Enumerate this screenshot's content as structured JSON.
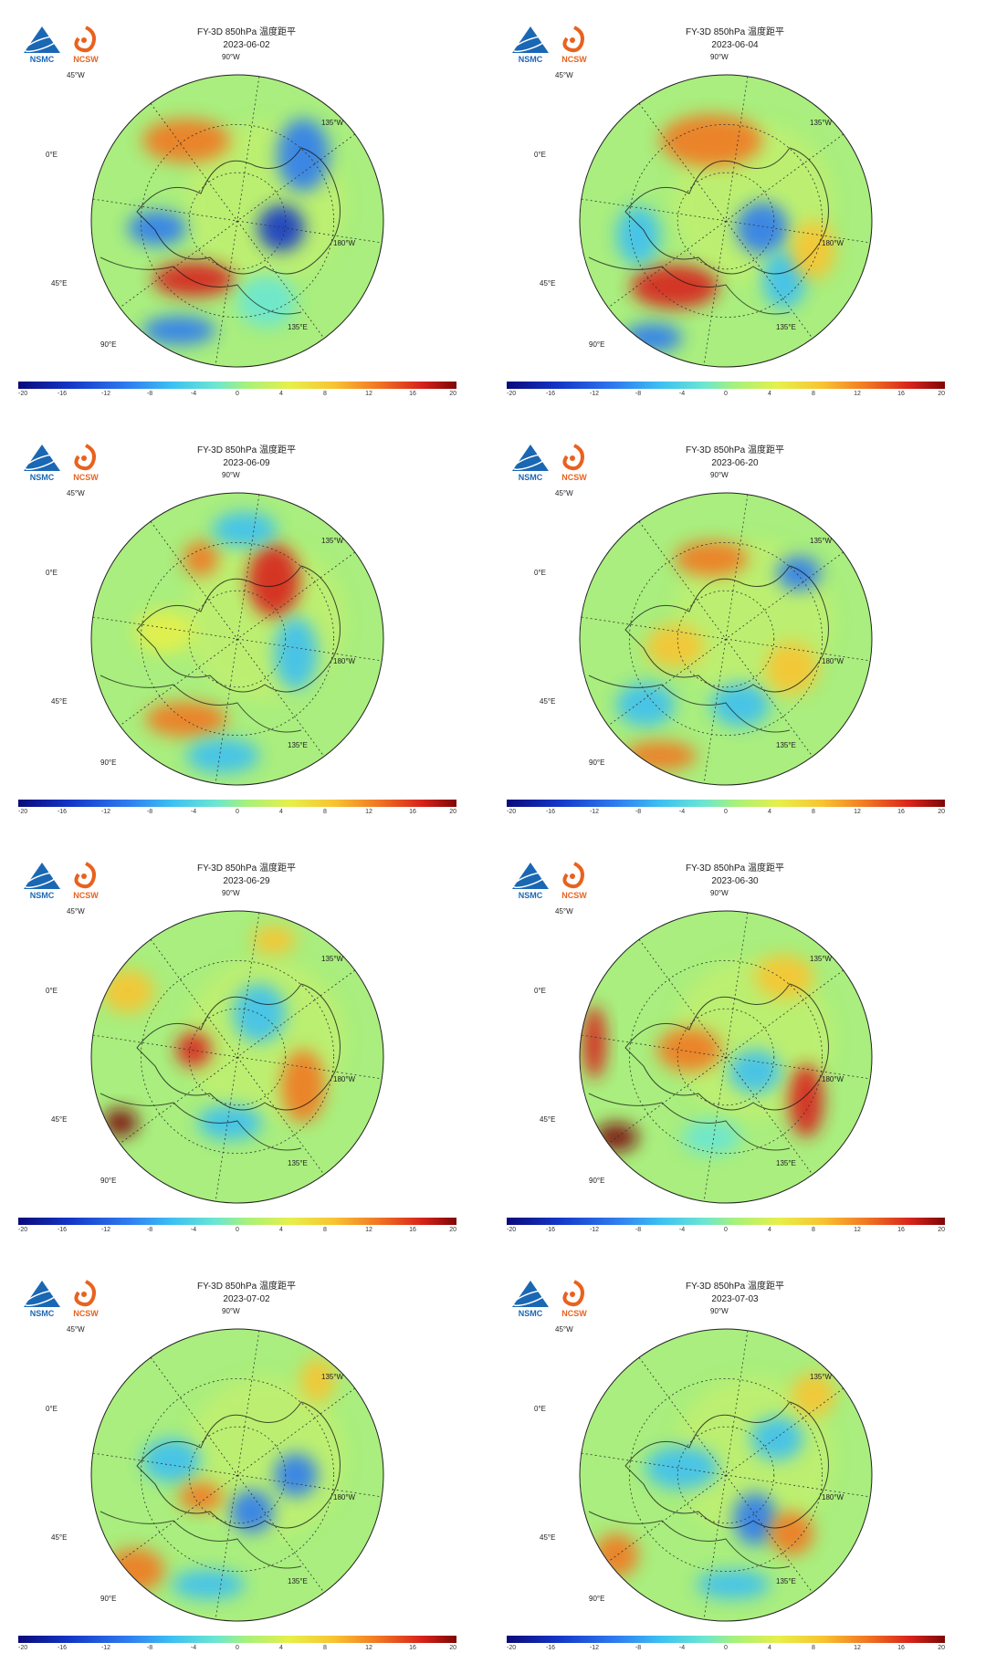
{
  "logos": {
    "nsmc": "NSMC",
    "ncsw": "NCSW"
  },
  "colorbar": {
    "ticks": [
      "-20",
      "-16",
      "-12",
      "-8",
      "-4",
      "0",
      "4",
      "8",
      "12",
      "16",
      "20"
    ],
    "colors": [
      "#0a0a7a",
      "#1437c8",
      "#2f7cf0",
      "#3cc0f2",
      "#6be6d2",
      "#a6f17c",
      "#e6f04a",
      "#f8c431",
      "#f17823",
      "#d8231b",
      "#7d0707"
    ]
  },
  "map_labels": {
    "lon_45w": "45°W",
    "lon_90w": "90°W",
    "lon_135w": "135°W",
    "lon_0e": "0°E",
    "lon_180w": "180°W",
    "lon_45e": "45°E",
    "lon_90e": "90°E",
    "lon_135e": "135°E"
  },
  "panels": [
    {
      "title": "FY-3D 850hPa 温度距平",
      "date": "2023-06-02"
    },
    {
      "title": "FY-3D 850hPa 温度距平",
      "date": "2023-06-04"
    },
    {
      "title": "FY-3D 850hPa 温度距平",
      "date": "2023-06-09"
    },
    {
      "title": "FY-3D 850hPa 温度距平",
      "date": "2023-06-20"
    },
    {
      "title": "FY-3D 850hPa 温度距平",
      "date": "2023-06-29"
    },
    {
      "title": "FY-3D 850hPa 温度距平",
      "date": "2023-06-30"
    },
    {
      "title": "FY-3D 850hPa 温度距平",
      "date": "2023-07-02"
    },
    {
      "title": "FY-3D 850hPa 温度距平",
      "date": "2023-07-03"
    }
  ]
}
